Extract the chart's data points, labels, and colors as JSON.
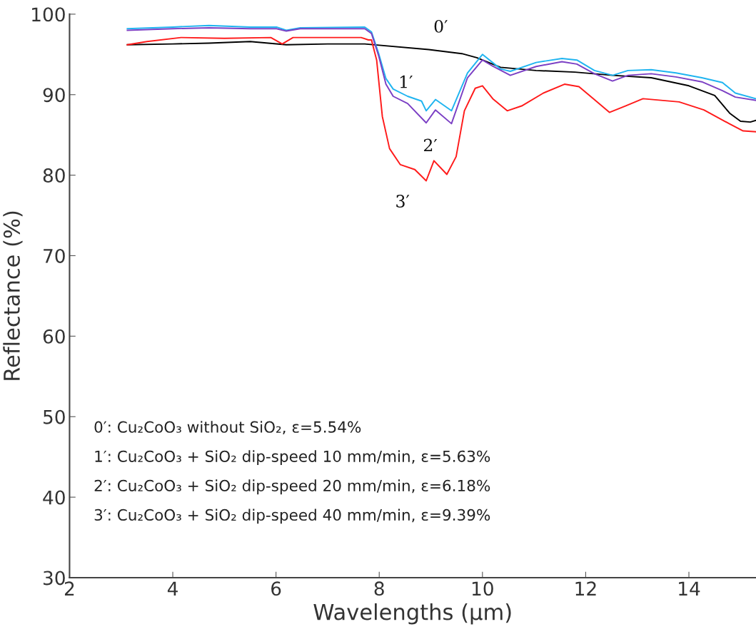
{
  "chart_data": {
    "type": "line",
    "xlabel": "Wavelengths (µm)",
    "ylabel": "Reflectance (%)",
    "xlim": [
      2,
      15.3
    ],
    "xticks": [
      2,
      4,
      6,
      8,
      10,
      12,
      14
    ],
    "ylim": [
      30,
      100
    ],
    "yticks": [
      30,
      40,
      50,
      60,
      70,
      80,
      90,
      100
    ],
    "grid": false,
    "line_style": "solid",
    "marker": "none",
    "series": [
      {
        "color": "#000000",
        "x": [
          3.12,
          4.0,
          4.7,
          5.5,
          6.2,
          7.0,
          7.72,
          8.96,
          9.6,
          9.89,
          10.35,
          11.04,
          11.79,
          12.52,
          13.27,
          14.0,
          14.5,
          14.79,
          15.0,
          15.19,
          15.29
        ],
        "values": [
          96.2,
          96.3,
          96.4,
          96.6,
          96.2,
          96.3,
          96.3,
          95.6,
          95.1,
          94.6,
          93.4,
          93.0,
          92.8,
          92.4,
          92.1,
          91.1,
          89.9,
          87.7,
          86.7,
          86.6,
          86.8
        ]
      },
      {
        "color": "#1fb4f0",
        "x": [
          3.12,
          4.0,
          4.7,
          5.5,
          6.01,
          6.2,
          6.47,
          7.72,
          7.85,
          7.99,
          8.13,
          8.27,
          8.55,
          8.82,
          8.91,
          9.09,
          9.4,
          9.71,
          10.0,
          10.35,
          10.54,
          11.04,
          11.54,
          11.83,
          12.17,
          12.52,
          12.82,
          13.27,
          13.75,
          14.25,
          14.65,
          14.9,
          15.29
        ],
        "values": [
          98.2,
          98.4,
          98.6,
          98.4,
          98.4,
          98.0,
          98.3,
          98.4,
          97.8,
          95.1,
          92.0,
          90.7,
          89.8,
          89.2,
          88.0,
          89.4,
          88.0,
          92.7,
          95.0,
          93.2,
          92.9,
          94.0,
          94.5,
          94.3,
          93.0,
          92.4,
          93.0,
          93.1,
          92.7,
          92.1,
          91.5,
          90.2,
          89.5
        ]
      },
      {
        "color": "#7b3fc4",
        "x": [
          3.12,
          4.0,
          4.7,
          5.5,
          6.01,
          6.2,
          6.47,
          7.72,
          7.85,
          7.99,
          8.13,
          8.27,
          8.55,
          8.91,
          9.09,
          9.4,
          9.71,
          10.0,
          10.21,
          10.54,
          11.04,
          11.54,
          11.83,
          12.17,
          12.52,
          12.82,
          13.27,
          13.75,
          14.25,
          14.65,
          14.9,
          15.29
        ],
        "values": [
          98.0,
          98.2,
          98.3,
          98.2,
          98.2,
          97.9,
          98.2,
          98.2,
          97.6,
          94.8,
          91.3,
          89.8,
          88.9,
          86.5,
          88.1,
          86.4,
          92.1,
          94.3,
          93.5,
          92.4,
          93.5,
          94.1,
          93.8,
          92.6,
          91.7,
          92.4,
          92.6,
          92.2,
          91.6,
          90.5,
          89.7,
          89.3
        ]
      },
      {
        "color": "#ff1a1a",
        "x": [
          3.12,
          3.5,
          4.16,
          5.0,
          5.9,
          6.12,
          6.33,
          7.0,
          7.65,
          7.79,
          7.85,
          7.95,
          8.06,
          8.2,
          8.41,
          8.69,
          8.91,
          9.06,
          9.31,
          9.49,
          9.65,
          9.86,
          10.0,
          10.2,
          10.48,
          10.76,
          11.18,
          11.59,
          11.87,
          12.15,
          12.46,
          12.77,
          13.11,
          13.81,
          14.29,
          14.78,
          15.05,
          15.29
        ],
        "values": [
          96.2,
          96.6,
          97.1,
          97.0,
          97.1,
          96.3,
          97.1,
          97.1,
          97.1,
          96.8,
          96.8,
          94.3,
          87.3,
          83.3,
          81.3,
          80.7,
          79.3,
          81.8,
          80.1,
          82.3,
          88.0,
          90.8,
          91.1,
          89.5,
          88.0,
          88.6,
          90.2,
          91.3,
          91.0,
          89.5,
          87.8,
          88.6,
          89.5,
          89.1,
          88.1,
          86.4,
          85.5,
          85.4
        ]
      }
    ],
    "annotations": [
      {
        "text": "0′",
        "x": 8.96,
        "y": 95.6
      },
      {
        "text": "1′",
        "x": 8.82,
        "y": 89.2
      },
      {
        "text": "2′",
        "x": 8.91,
        "y": 86.5
      },
      {
        "text": "3′",
        "x": 8.91,
        "y": 79.3
      },
      "0′: Cu₂CoO₃ without SiO₂, ε=5.54%",
      "1′: Cu₂CoO₃ + SiO₂ dip-speed 10 mm/min, ε=5.63%",
      "2′: Cu₂CoO₃ + SiO₂ dip-speed 20 mm/min, ε=6.18%",
      "3′: Cu₂CoO₃ + SiO₂ dip-speed 40 mm/min, ε=9.39%"
    ]
  }
}
